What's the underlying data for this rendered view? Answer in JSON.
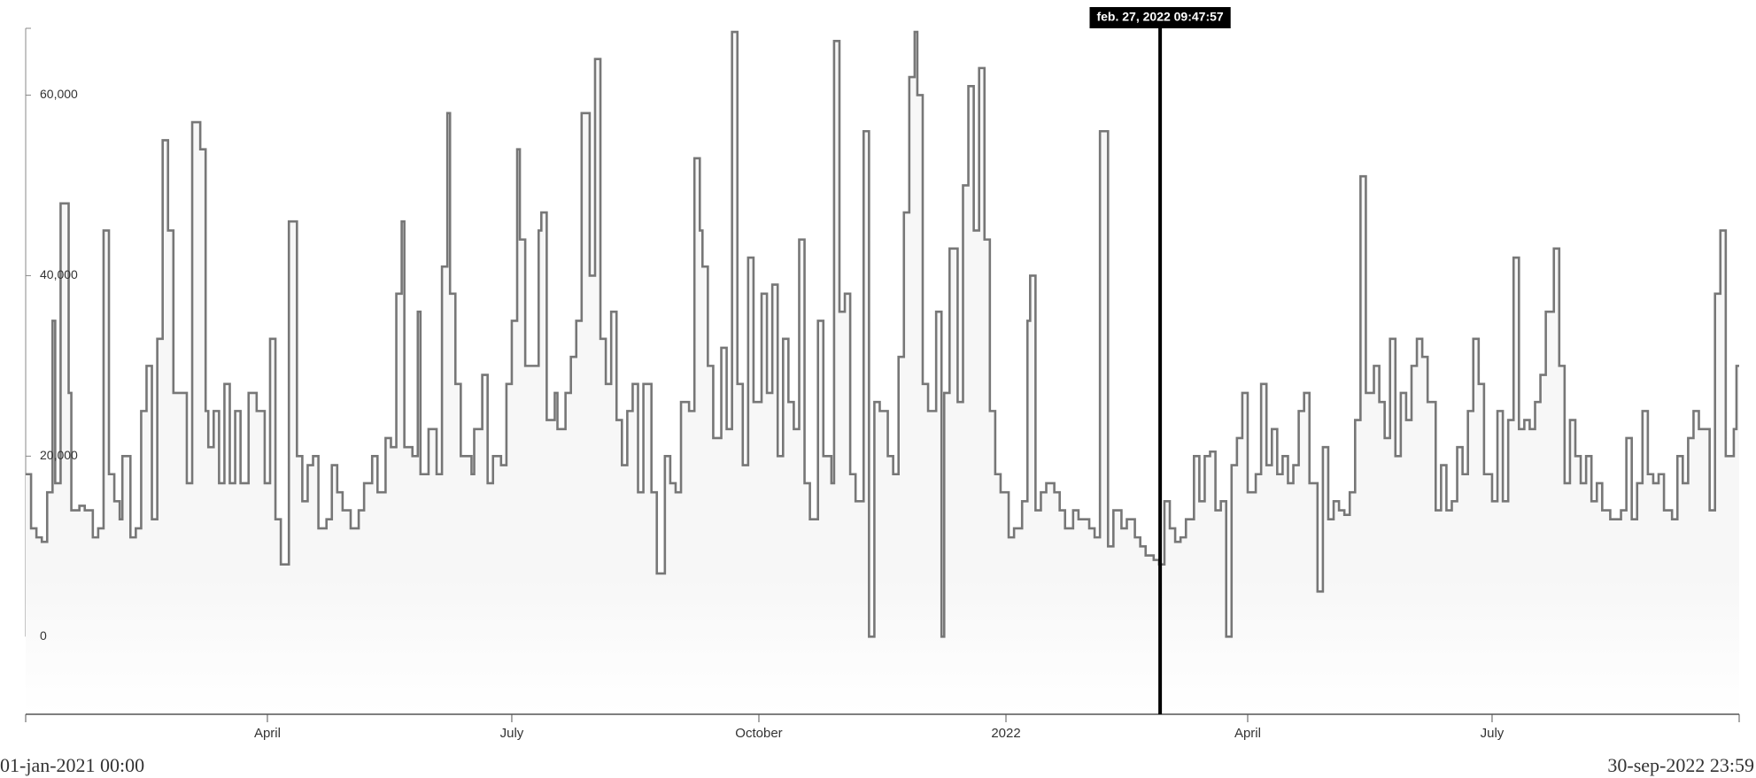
{
  "chart_data": {
    "type": "line",
    "step": "post",
    "color": "#777777",
    "area_color": "#f7f7f7",
    "x": [
      0,
      2,
      4,
      6,
      8,
      10,
      11,
      13,
      16,
      17,
      20,
      22,
      25,
      27,
      29,
      31,
      33,
      35,
      36,
      39,
      41,
      43,
      45,
      47,
      49,
      51,
      53,
      55,
      58,
      60,
      62,
      65,
      67,
      68,
      70,
      72,
      74,
      76,
      78,
      80,
      83,
      86,
      89,
      91,
      93,
      95,
      98,
      101,
      103,
      105,
      107,
      109,
      112,
      114,
      116,
      118,
      121,
      124,
      126,
      129,
      131,
      134,
      136,
      138,
      140,
      141,
      144,
      146,
      147,
      150,
      153,
      155,
      157,
      158,
      160,
      162,
      166,
      167,
      170,
      172,
      174,
      177,
      179,
      181,
      183,
      184,
      186,
      189,
      191,
      192,
      194,
      197,
      198,
      201,
      203,
      205,
      207,
      210,
      212,
      214,
      216,
      218,
      220,
      222,
      224,
      226,
      228,
      230,
      233,
      235,
      238,
      240,
      242,
      244,
      247,
      249,
      251,
      252,
      254,
      256,
      259,
      261,
      263,
      265,
      267,
      269,
      271,
      274,
      276,
      278,
      280,
      282,
      284,
      286,
      288,
      290,
      292,
      295,
      297,
      300,
      301,
      303,
      305,
      307,
      309,
      312,
      314,
      316,
      318,
      321,
      323,
      325,
      327,
      329,
      331,
      332,
      334,
      336,
      339,
      341,
      342,
      344,
      347,
      349,
      351,
      353,
      355,
      357,
      359,
      361,
      363,
      366,
      368,
      371,
      373,
      374,
      376,
      378,
      380,
      383,
      385,
      387,
      390,
      392,
      394,
      396,
      398,
      400,
      403,
      405,
      408,
      410,
      413,
      415,
      417,
      420,
      422,
      424,
      426,
      428,
      430,
      432,
      435,
      437,
      439,
      441,
      443,
      445,
      447,
      449,
      451,
      453,
      455,
      458,
      460,
      462,
      464,
      466,
      468,
      470,
      472,
      474,
      476,
      478,
      481,
      483,
      485,
      487,
      489,
      491,
      493,
      495,
      497,
      499,
      502,
      504,
      506,
      508,
      510,
      512,
      514,
      516,
      518,
      520,
      522,
      525,
      527,
      529,
      531,
      533,
      535,
      537,
      539,
      541,
      543,
      546,
      548,
      550,
      552,
      554,
      556,
      558,
      560,
      562,
      564,
      566,
      569,
      571,
      573,
      575,
      577,
      579,
      581,
      583,
      585,
      587,
      590,
      592,
      594,
      596,
      598,
      600,
      602,
      604,
      606,
      608,
      610,
      613,
      615,
      617,
      619,
      621,
      623,
      625,
      627,
      629,
      631,
      633,
      636,
      637
    ],
    "values": [
      18000,
      12000,
      11000,
      10500,
      16000,
      35000,
      17000,
      48000,
      27000,
      14000,
      14500,
      14000,
      11000,
      12000,
      45000,
      18000,
      15000,
      13000,
      20000,
      11000,
      12000,
      25000,
      30000,
      13000,
      33000,
      55000,
      45000,
      27000,
      27000,
      17000,
      57000,
      54000,
      25000,
      21000,
      25000,
      17000,
      28000,
      17000,
      25000,
      17000,
      27000,
      25000,
      17000,
      33000,
      13000,
      8000,
      46000,
      20000,
      15000,
      19000,
      20000,
      12000,
      13000,
      19000,
      16000,
      14000,
      12000,
      14000,
      17000,
      20000,
      16000,
      22000,
      21000,
      38000,
      46000,
      21000,
      20000,
      36000,
      18000,
      23000,
      18000,
      41000,
      58000,
      38000,
      28000,
      20000,
      18000,
      23000,
      29000,
      17000,
      20000,
      19000,
      28000,
      35000,
      54000,
      44000,
      30000,
      30000,
      45000,
      47000,
      24000,
      27000,
      23000,
      27000,
      31000,
      35000,
      58000,
      40000,
      64000,
      33000,
      28000,
      36000,
      24000,
      19000,
      25000,
      28000,
      16000,
      28000,
      16000,
      7000,
      20000,
      17000,
      16000,
      26000,
      25000,
      53000,
      45000,
      41000,
      30000,
      22000,
      32000,
      23000,
      67000,
      28000,
      19000,
      42000,
      26000,
      38000,
      27000,
      39000,
      20000,
      33000,
      26000,
      23000,
      44000,
      17000,
      13000,
      35000,
      20000,
      17000,
      66000,
      36000,
      38000,
      18000,
      15000,
      56000,
      0,
      26000,
      25000,
      20000,
      18000,
      31000,
      47000,
      62000,
      67000,
      60000,
      28000,
      25000,
      36000,
      0,
      27000,
      43000,
      26000,
      50000,
      61000,
      45000,
      63000,
      44000,
      25000,
      18000,
      16000,
      11000,
      12000,
      15000,
      35000,
      40000,
      14000,
      16000,
      17000,
      16000,
      14000,
      12000,
      14000,
      13000,
      13000,
      12000,
      11000,
      56000,
      10000,
      14000,
      12000,
      13000,
      11000,
      10000,
      9000,
      8500,
      8000,
      15000,
      12000,
      10500,
      11000,
      13000,
      20000,
      15000,
      20000,
      20500,
      14000,
      15000,
      0,
      19000,
      22000,
      27000,
      16000,
      18000,
      28000,
      19000,
      23000,
      18000,
      20000,
      17000,
      19000,
      25000,
      27000,
      17000,
      5000,
      21000,
      13000,
      15000,
      14000,
      13500,
      16000,
      24000,
      51000,
      27000,
      30000,
      26000,
      22000,
      33000,
      20000,
      27000,
      24000,
      30000,
      33000,
      31000,
      26000,
      14000,
      19000,
      14000,
      15000,
      21000,
      18000,
      25000,
      33000,
      28000,
      18000,
      15000,
      25000,
      15000,
      24000,
      42000,
      23000,
      24000,
      23000,
      26000,
      29000,
      36000,
      43000,
      30000,
      17000,
      24000,
      20000,
      17000,
      20000,
      15000,
      17000,
      14000,
      13000,
      13000,
      14000,
      22000,
      13000,
      17000,
      25000,
      18000,
      17000,
      18000,
      14000,
      13000,
      20000,
      17000,
      22000,
      25000,
      23000,
      23000,
      14000,
      38000,
      45000,
      20000,
      23000,
      30000
    ],
    "xlim": [
      0,
      638
    ],
    "xticks": [
      {
        "value": 90,
        "label": "April"
      },
      {
        "value": 181,
        "label": "July"
      },
      {
        "value": 273,
        "label": "October"
      },
      {
        "value": 365,
        "label": "2022"
      },
      {
        "value": 455,
        "label": "April"
      },
      {
        "value": 546,
        "label": "July"
      }
    ],
    "ylim": [
      -8600,
      67400
    ],
    "yticks": [
      0,
      {
        "value": 20000,
        "label": "20,000"
      },
      {
        "value": 40000,
        "label": "40,000"
      },
      {
        "value": 60000,
        "label": "60,000"
      }
    ],
    "start_label": "01-jan-2021 00:00",
    "end_label": "30-sep-2022 23:59",
    "cursor": {
      "x": 422.4,
      "label": "feb. 27, 2022 09:47:57"
    }
  }
}
